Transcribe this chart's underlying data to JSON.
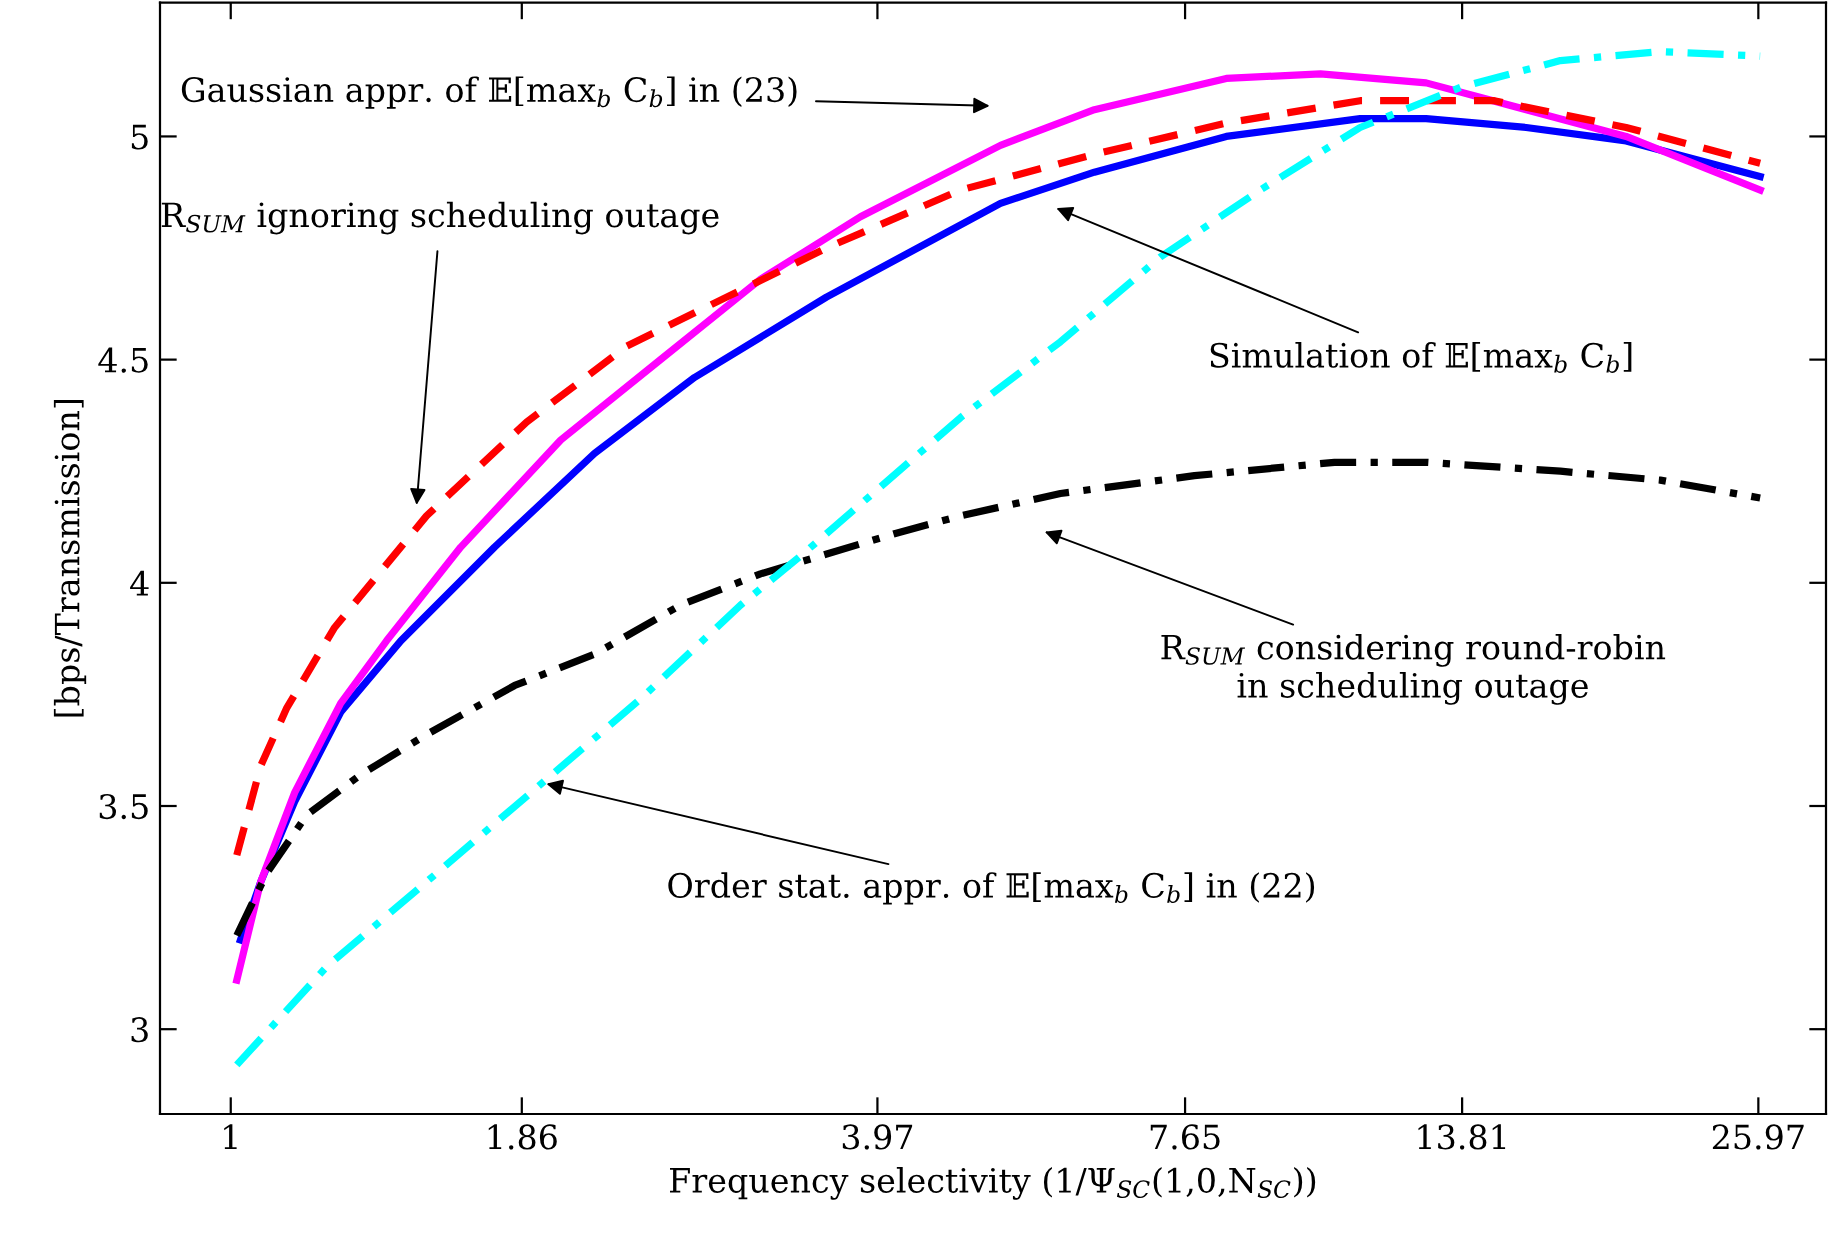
{
  "chart_data": {
    "type": "line",
    "xlabel": "Frequency selectivity (1/Ψ$_{SC}$(1,0,N$_{SC}$))",
    "ylabel": "[bps/Transmission]",
    "log": "x",
    "xlim": [
      0.86,
      30
    ],
    "xticks": [
      1,
      1.86,
      3.97,
      7.65,
      13.81,
      25.97
    ],
    "ylim": [
      2.81,
      5.3
    ],
    "yticks": [
      3,
      3.5,
      4,
      4.5,
      5
    ],
    "grid": false,
    "marker": "none",
    "series": [
      {
        "color": "#0000ff",
        "line_style": "solid",
        "x": [
          1.021,
          1.066,
          1.146,
          1.264,
          1.437,
          1.755,
          2.172,
          2.688,
          3.561,
          5.161,
          6.305,
          8.353,
          11.11,
          12.79,
          15.83,
          19.59,
          26.07
        ],
        "values": [
          3.2,
          3.33,
          3.51,
          3.71,
          3.87,
          4.08,
          4.29,
          4.46,
          4.64,
          4.85,
          4.92,
          5.0,
          5.04,
          5.04,
          5.02,
          4.99,
          4.91
        ]
      },
      {
        "color": "#ff00ff",
        "line_style": "solid",
        "x": [
          1.013,
          1.066,
          1.146,
          1.264,
          1.394,
          1.633,
          2.021,
          2.5,
          3.094,
          3.829,
          5.161,
          6.305,
          8.353,
          10.21,
          12.79,
          15.83,
          19.59,
          26.07
        ],
        "values": [
          3.11,
          3.33,
          3.53,
          3.73,
          3.87,
          4.08,
          4.32,
          4.5,
          4.68,
          4.82,
          4.98,
          5.06,
          5.13,
          5.14,
          5.12,
          5.06,
          5.0,
          4.88
        ]
      },
      {
        "color": "#ff0000",
        "line_style": "dashed",
        "x": [
          1.013,
          1.066,
          1.127,
          1.248,
          1.518,
          1.879,
          2.326,
          2.878,
          3.561,
          4.739,
          6.305,
          8.353,
          11.11,
          14.79,
          19.59,
          26.07
        ],
        "values": [
          3.39,
          3.59,
          3.72,
          3.9,
          4.15,
          4.36,
          4.53,
          4.64,
          4.75,
          4.88,
          4.96,
          5.03,
          5.08,
          5.08,
          5.02,
          4.94
        ]
      },
      {
        "color": "#000000",
        "line_style": "dashdot",
        "x": [
          1.013,
          1.08,
          1.176,
          1.319,
          1.518,
          1.832,
          2.172,
          2.609,
          3.094,
          4.117,
          4.739,
          5.865,
          7.804,
          10.52,
          12.79,
          17.03,
          21.07,
          26.07
        ],
        "values": [
          3.21,
          3.35,
          3.48,
          3.57,
          3.66,
          3.77,
          3.84,
          3.95,
          4.02,
          4.11,
          4.15,
          4.2,
          4.24,
          4.27,
          4.27,
          4.25,
          4.23,
          4.19
        ]
      },
      {
        "color": "#00ffff",
        "line_style": "dashdot",
        "x": [
          1.013,
          1.227,
          1.518,
          1.961,
          2.396,
          2.965,
          3.37,
          4.739,
          5.865,
          7.258,
          8.981,
          11.11,
          13.76,
          17.03,
          21.07,
          26.07
        ],
        "values": [
          2.92,
          3.14,
          3.33,
          3.56,
          3.74,
          3.95,
          4.06,
          4.37,
          4.54,
          4.73,
          4.88,
          5.02,
          5.11,
          5.17,
          5.19,
          5.18
        ]
      }
    ],
    "annotations": [
      "Gaussian appr. of 𝔼[max$_{b}$ C$_{b}$] in (23)",
      "R$_{SUM}$ ignoring scheduling outage",
      "Simulation of 𝔼[max$_{b}$ C$_{b}$]",
      "R$_{SUM}$ considering round-robin\nin scheduling outage",
      {
        "text": "Order stat. appr. of 𝔼[max$_{b}$ C$_{b}$] in (22)",
        "x": 1.96,
        "y": 3.55
      }
    ]
  }
}
